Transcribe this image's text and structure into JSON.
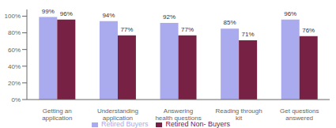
{
  "chart_data": {
    "type": "bar",
    "categories": [
      "Getting an\napplication",
      "Understanding\napplication",
      "Answering\nhealth questions",
      "Reading through\nkit",
      "Get questions\nanswered"
    ],
    "series": [
      {
        "name": "Retired Buyers",
        "color": "#aaaaee",
        "values": [
          99,
          94,
          92,
          85,
          96
        ],
        "value_labels": [
          "99%",
          "94%",
          "92%",
          "85%",
          "96%"
        ]
      },
      {
        "name": "Retired Non- Buyers",
        "color": "#772244",
        "values": [
          96,
          77,
          77,
          71,
          76
        ],
        "value_labels": [
          "96%",
          "77%",
          "77%",
          "71%",
          "76%"
        ]
      }
    ],
    "ylim": [
      0,
      108
    ],
    "yticks": [
      {
        "value": 0,
        "label": "0%"
      },
      {
        "value": 20,
        "label": "20%"
      },
      {
        "value": 40,
        "label": "40%"
      },
      {
        "value": 60,
        "label": "60%"
      },
      {
        "value": 80,
        "label": "80%"
      },
      {
        "value": 100,
        "label": "100%"
      }
    ],
    "data_labels": true,
    "legend": "bottom",
    "grid": false
  }
}
